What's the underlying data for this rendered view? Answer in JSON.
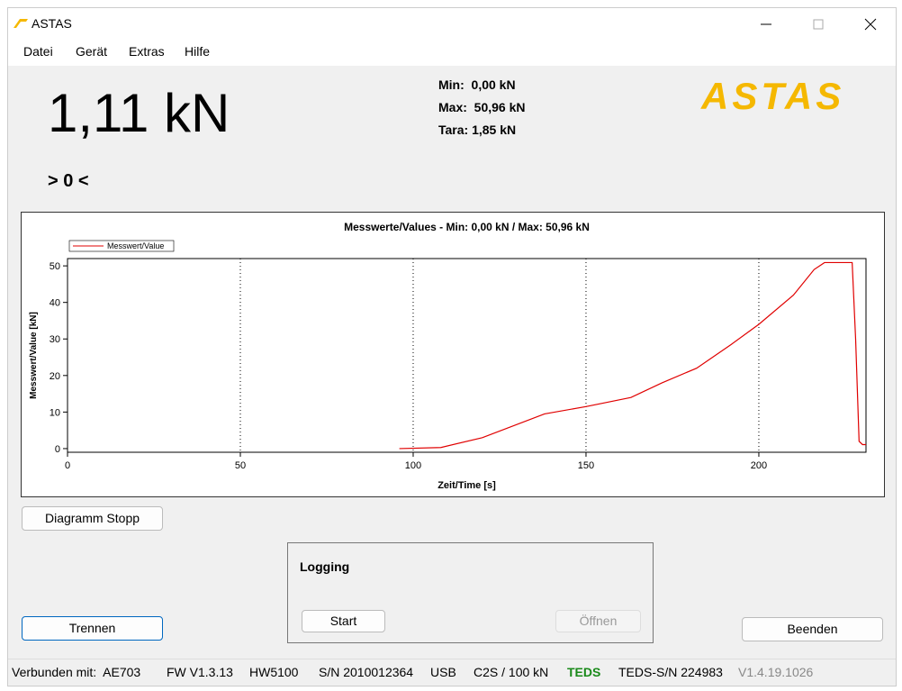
{
  "window": {
    "title": "ASTAS"
  },
  "menu": [
    "Datei",
    "Gerät",
    "Extras",
    "Hilfe"
  ],
  "reading": {
    "value": "1,11 kN",
    "zero": "> 0 <"
  },
  "stats": [
    "Min:  0,00 kN",
    "Max:  50,96 kN",
    "Tara: 1,85 kN"
  ],
  "logo": "ASTAS",
  "chart_data": {
    "type": "line",
    "title": "Messwerte/Values - Min:  0,00 kN / Max:  50,96 kN",
    "x_label": "Zeit/Time [s]",
    "y_label": "Messwert/Value [kN]",
    "x": [
      96,
      108,
      120,
      138,
      150,
      163,
      172,
      182,
      192,
      200,
      210,
      216,
      219,
      227,
      228,
      229,
      230,
      231
    ],
    "series": [
      {
        "name": "Messwert/Value",
        "color": "#e00000",
        "values": [
          0,
          0.3,
          3,
          9.5,
          11.5,
          14,
          18,
          22,
          28.5,
          34,
          42,
          49,
          50.9,
          50.9,
          30,
          2,
          1.1,
          1.1
        ]
      }
    ],
    "xlim": [
      0,
      231
    ],
    "ylim": [
      -1,
      52
    ],
    "xticks": [
      0,
      50,
      100,
      150,
      200
    ],
    "yticks": [
      0,
      10,
      20,
      30,
      40,
      50
    ],
    "grid": true,
    "legend": "top-left"
  },
  "buttons": {
    "diagram": "Diagramm Stopp",
    "disconnect": "Trennen",
    "start": "Start",
    "open": "Öffnen",
    "exit": "Beenden"
  },
  "logging": {
    "title": "Logging"
  },
  "status": [
    "Verbunden mit:  AE703",
    "FW V1.3.13",
    "HW5100",
    "S/N 2010012364",
    "USB",
    "C2S / 100 kN",
    "TEDS",
    "TEDS-S/N 224983",
    "V1.4.19.1026"
  ]
}
